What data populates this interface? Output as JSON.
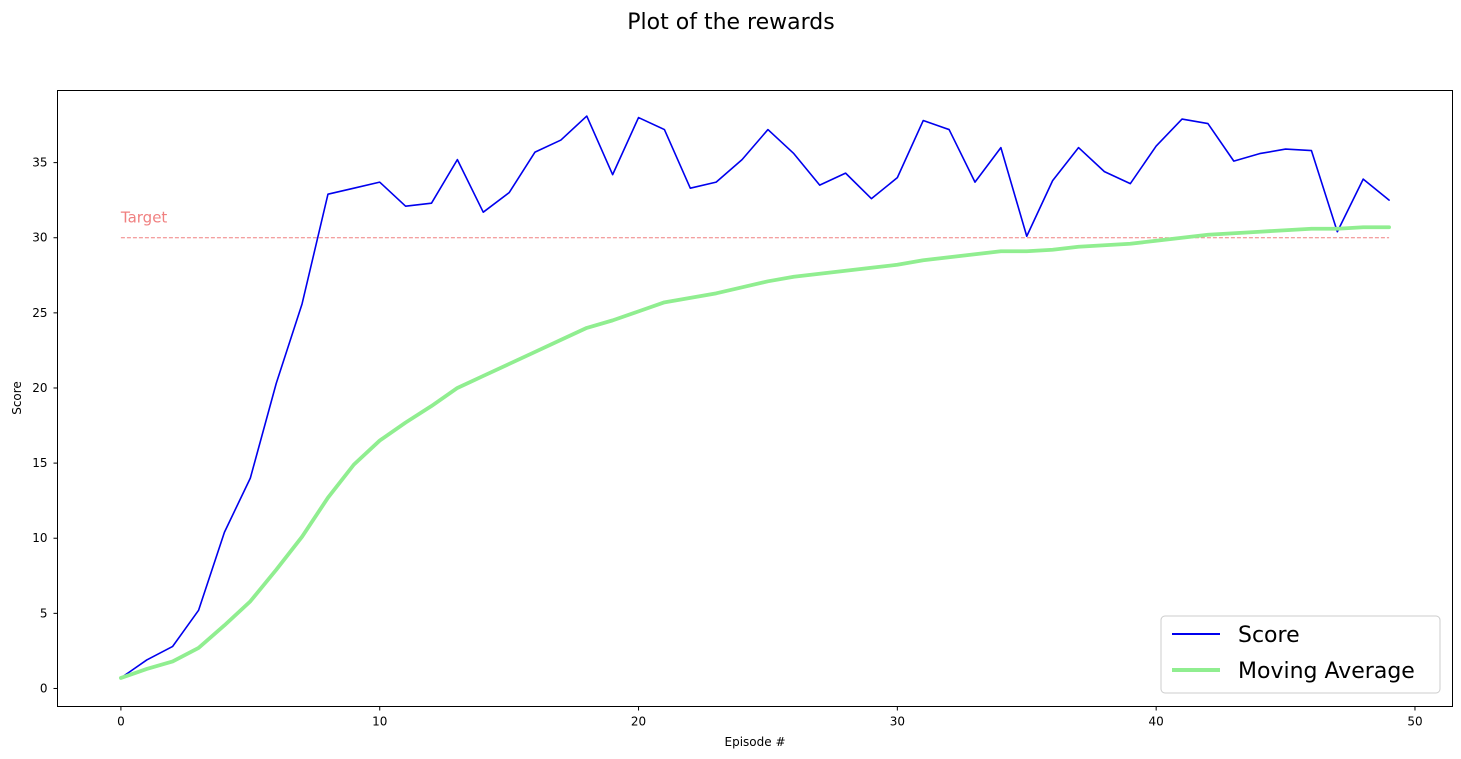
{
  "colors": {
    "score": "#0000ee",
    "moving_average": "#90ee90",
    "target": "#f08080",
    "axes": "#000000",
    "background": "#ffffff"
  },
  "chart_data": {
    "type": "line",
    "title": "Plot of the rewards",
    "xlabel": "Episode #",
    "ylabel": "Score",
    "xlim": [
      -2.45,
      51.45
    ],
    "ylim": [
      -1.2,
      39.8
    ],
    "xticks": [
      0,
      10,
      20,
      30,
      40,
      50
    ],
    "yticks": [
      0,
      5,
      10,
      15,
      20,
      25,
      30,
      35
    ],
    "grid": false,
    "legend_position": "bottom-right",
    "target": {
      "label": "Target",
      "value": 30,
      "x": [
        0,
        49
      ]
    },
    "x": [
      0,
      1,
      2,
      3,
      4,
      5,
      6,
      7,
      8,
      9,
      10,
      11,
      12,
      13,
      14,
      15,
      16,
      17,
      18,
      19,
      20,
      21,
      22,
      23,
      24,
      25,
      26,
      27,
      28,
      29,
      30,
      31,
      32,
      33,
      34,
      35,
      36,
      37,
      38,
      39,
      40,
      41,
      42,
      43,
      44,
      45,
      46,
      47,
      48,
      49
    ],
    "series": [
      {
        "name": "Score",
        "values": [
          0.7,
          1.9,
          2.8,
          5.2,
          10.4,
          14.0,
          20.3,
          25.6,
          32.9,
          33.3,
          33.7,
          32.1,
          32.3,
          35.2,
          31.7,
          33.0,
          35.7,
          36.5,
          38.1,
          34.2,
          38.0,
          37.2,
          33.3,
          33.7,
          35.2,
          37.2,
          35.6,
          33.5,
          34.3,
          32.6,
          34.0,
          37.8,
          37.2,
          33.7,
          36.0,
          30.1,
          33.8,
          36.0,
          34.4,
          33.6,
          36.1,
          37.9,
          37.6,
          35.1,
          35.6,
          35.9,
          35.8,
          30.4,
          33.9,
          32.5
        ]
      },
      {
        "name": "Moving Average",
        "values": [
          0.7,
          1.3,
          1.8,
          2.7,
          4.2,
          5.8,
          7.9,
          10.1,
          12.7,
          14.9,
          16.5,
          17.7,
          18.8,
          20.0,
          20.8,
          21.6,
          22.4,
          23.2,
          24.0,
          24.5,
          25.1,
          25.7,
          26.0,
          26.3,
          26.7,
          27.1,
          27.4,
          27.6,
          27.8,
          28.0,
          28.2,
          28.5,
          28.7,
          28.9,
          29.1,
          29.1,
          29.2,
          29.4,
          29.5,
          29.6,
          29.8,
          30.0,
          30.2,
          30.3,
          30.4,
          30.5,
          30.6,
          30.6,
          30.7,
          30.7
        ]
      }
    ]
  }
}
